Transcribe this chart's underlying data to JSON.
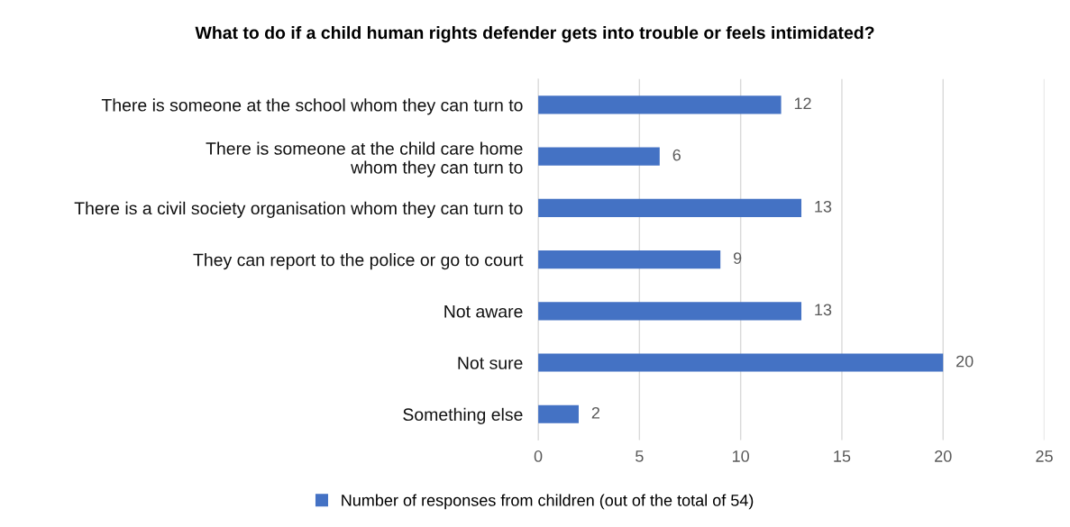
{
  "chart_data": {
    "type": "bar",
    "orientation": "horizontal",
    "title": "What to do if a child human rights defender gets into trouble or feels intimidated?",
    "categories": [
      "There is someone at the school whom they can turn to",
      "There is someone at the child care home\nwhom they can turn to",
      "There is a civil society organisation whom they can turn to",
      "They can report to the police or go to court",
      "Not aware",
      "Not sure",
      "Something else"
    ],
    "series": [
      {
        "name": "Number of responses from children (out of the total of 54)",
        "color": "#4472c4",
        "values": [
          12,
          6,
          13,
          9,
          13,
          20,
          2
        ]
      }
    ],
    "xlim": [
      0,
      25
    ],
    "xticks": [
      0,
      5,
      10,
      15,
      20,
      25
    ],
    "grid": "x",
    "legend": "bottom",
    "data_labels": true
  }
}
